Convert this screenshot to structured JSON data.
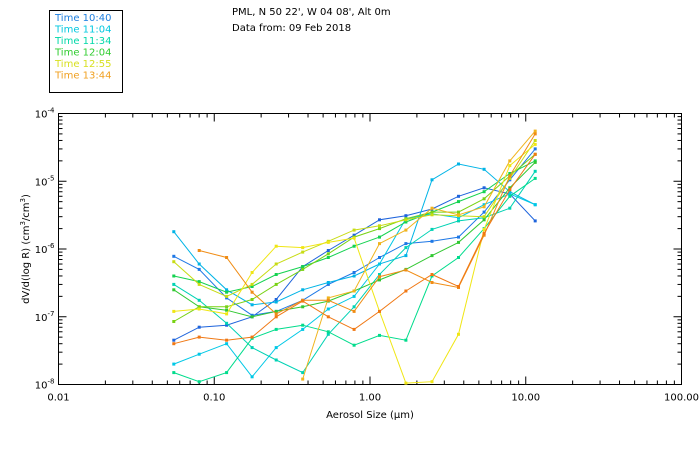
{
  "header": {
    "line1": "PML, N 50 22', W 04 08', Alt 0m",
    "line2": "Data from: 09 Feb 2018"
  },
  "legend": [
    {
      "label": "Time 10:40",
      "color": "#1e7fe0"
    },
    {
      "label": "Time 11:04",
      "color": "#00c8e0"
    },
    {
      "label": "Time 11:34",
      "color": "#00d8a8"
    },
    {
      "label": "Time 12:04",
      "color": "#30cc30"
    },
    {
      "label": "Time 12:55",
      "color": "#d8e020"
    },
    {
      "label": "Time 13:44",
      "color": "#f0a020"
    }
  ],
  "chart_data": {
    "type": "line",
    "xlabel": "Aerosol Size (µm)",
    "ylabel_parts": {
      "main": "dV/d(log R) (cm",
      "sup1": "3",
      "mid": "/cm",
      "sup2": "3",
      "end": ")"
    },
    "x_scale": "log",
    "y_scale": "log",
    "xlim": [
      0.01,
      100
    ],
    "ylim": [
      1e-08,
      0.0001
    ],
    "x_ticks": [
      {
        "value": 0.01,
        "label": "0.01"
      },
      {
        "value": 0.1,
        "label": "0.10"
      },
      {
        "value": 1,
        "label": "1.00"
      },
      {
        "value": 10,
        "label": "10.00"
      },
      {
        "value": 100,
        "label": "100.00"
      }
    ],
    "y_ticks": [
      {
        "value": 1e-08,
        "base": "10",
        "exp": "-8"
      },
      {
        "value": 1e-07,
        "base": "10",
        "exp": "-7"
      },
      {
        "value": 1e-06,
        "base": "10",
        "exp": "-6"
      },
      {
        "value": 1e-05,
        "base": "10",
        "exp": "-5"
      },
      {
        "value": 0.0001,
        "base": "10",
        "exp": "-4"
      }
    ],
    "x": [
      0.055,
      0.08,
      0.12,
      0.175,
      0.25,
      0.37,
      0.54,
      0.79,
      1.15,
      1.7,
      2.5,
      3.7,
      5.4,
      7.9,
      11.5
    ],
    "series": [
      {
        "color": "#1e64dc",
        "values": [
          4.5e-08,
          7e-08,
          7.5e-08,
          1e-07,
          1.8e-07,
          5.5e-07,
          9.5e-07,
          1.6e-06,
          2.7e-06,
          3.1e-06,
          3.9e-06,
          6e-06,
          8e-06,
          6.5e-06,
          2.6e-06
        ]
      },
      {
        "color": "#1e78e6",
        "values": [
          7.8e-07,
          5e-07,
          1.9e-07,
          1.05e-07,
          1.2e-07,
          1.75e-07,
          3e-07,
          4.5e-07,
          7.5e-07,
          1.2e-06,
          1.3e-06,
          1.5e-06,
          3.5e-06,
          1.05e-05,
          3e-05
        ]
      },
      {
        "color": "#00b4e6",
        "values": [
          1.8e-06,
          6e-07,
          2.5e-07,
          1.5e-07,
          1.65e-07,
          2.5e-07,
          3.2e-07,
          4e-07,
          6e-07,
          8e-07,
          1.05e-05,
          1.8e-05,
          1.5e-05,
          7e-06,
          4.5e-06
        ]
      },
      {
        "color": "#00c8e6",
        "values": [
          2e-08,
          2.8e-08,
          4e-08,
          1.3e-08,
          3.5e-08,
          6.5e-08,
          1.3e-07,
          2e-07,
          6e-07,
          2.8e-06,
          3.3e-06,
          2.9e-06,
          4.5e-06,
          6.5e-06,
          4.5e-06
        ]
      },
      {
        "color": "#00d2b4",
        "values": [
          3e-07,
          1.75e-07,
          8e-08,
          3.5e-08,
          2.3e-08,
          1.5e-08,
          5.5e-08,
          1.4e-07,
          4.2e-07,
          1.05e-06,
          1.95e-06,
          2.6e-06,
          2.9e-06,
          4e-06,
          1.4e-05
        ]
      },
      {
        "color": "#00dc8c",
        "values": [
          1.5e-08,
          1.1e-08,
          1.5e-08,
          4.8e-08,
          6.5e-08,
          7.5e-08,
          6e-08,
          3.8e-08,
          5.3e-08,
          4.5e-08,
          4e-07,
          7.5e-07,
          2e-06,
          6e-06,
          1.1e-05
        ]
      },
      {
        "color": "#14d250",
        "values": [
          4e-07,
          3.3e-07,
          2.3e-07,
          2.8e-07,
          4.2e-07,
          5.5e-07,
          7.5e-07,
          1.1e-06,
          1.5e-06,
          2.5e-06,
          3.5e-06,
          5e-06,
          7e-06,
          1.3e-05,
          2e-05
        ]
      },
      {
        "color": "#32c832",
        "values": [
          2.5e-07,
          1.4e-07,
          1.25e-07,
          1e-07,
          1.2e-07,
          1.4e-07,
          1.7e-07,
          2.4e-07,
          3.5e-07,
          5e-07,
          8e-07,
          1.25e-06,
          2.7e-06,
          8e-06,
          1.9e-05
        ]
      },
      {
        "color": "#78d214",
        "values": [
          8.5e-08,
          1.4e-07,
          1.4e-07,
          1.8e-07,
          3e-07,
          5e-07,
          8.5e-07,
          1.5e-06,
          2e-06,
          2.8e-06,
          3.5e-06,
          3.5e-06,
          5.5e-06,
          1.2e-05,
          2.5e-05
        ]
      },
      {
        "color": "#c8dc14",
        "values": [
          6.5e-07,
          3e-07,
          2e-07,
          3e-07,
          6e-07,
          9e-07,
          1.3e-06,
          1.9e-06,
          2.2e-06,
          2.7e-06,
          3.2e-06,
          3.1e-06,
          3e-06,
          1.1e-05,
          4e-05
        ]
      },
      {
        "color": "#f0e614",
        "values": [
          1.2e-07,
          1.3e-07,
          1.1e-07,
          4.5e-07,
          1.1e-06,
          1.05e-06,
          1.25e-06,
          1.45e-06,
          1.2e-07,
          1.05e-08,
          1.1e-08,
          5.5e-08,
          1.95e-06,
          1.7e-05,
          3.5e-05
        ]
      },
      {
        "color": "#f0b41e",
        "values": [
          null,
          null,
          null,
          null,
          null,
          1.2e-08,
          1.9e-07,
          2.4e-07,
          1.2e-06,
          1.9e-06,
          4e-06,
          3.2e-06,
          4.2e-06,
          2e-05,
          5.5e-05
        ]
      },
      {
        "color": "#f08c14",
        "values": [
          null,
          9.5e-07,
          7.5e-07,
          2.3e-07,
          1.1e-07,
          1.75e-07,
          1.75e-07,
          1.2e-07,
          3.9e-07,
          4.9e-07,
          3.2e-07,
          2.7e-07,
          1.6e-06,
          1.2e-05,
          5e-05
        ]
      },
      {
        "color": "#f07814",
        "values": [
          4e-08,
          5e-08,
          4.5e-08,
          5e-08,
          1e-07,
          1.7e-07,
          1e-07,
          6.5e-08,
          1.2e-07,
          2.4e-07,
          4.2e-07,
          2.8e-07,
          1.7e-06,
          7.5e-06,
          2.5e-05
        ]
      }
    ]
  }
}
